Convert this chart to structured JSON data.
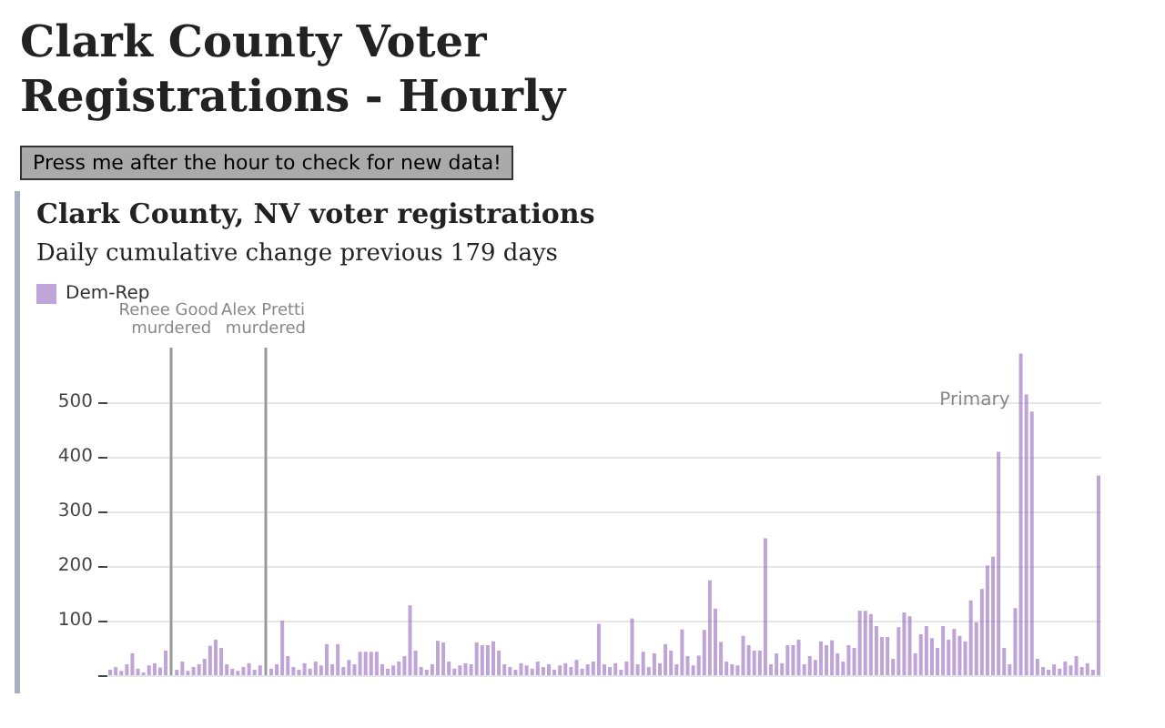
{
  "chart_data": {
    "type": "bar",
    "title": "Clark County, NV voter registrations",
    "subtitle": "Daily cumulative change previous 179 days",
    "annotations": [
      "Clark County Voter Registrations - Hourly",
      "Press me after the hour to check for new data!",
      "Renee Good murdered",
      "Alex Pretti murdered",
      "Primary"
    ],
    "categories": [
      null,
      null,
      null,
      null,
      null,
      null,
      null,
      null,
      null,
      null,
      null,
      null,
      null,
      null,
      null,
      null,
      null,
      null,
      null,
      null,
      null,
      null,
      null,
      null,
      null,
      null,
      null,
      null,
      null,
      null,
      null,
      null,
      null,
      null,
      null,
      null,
      null,
      null,
      null,
      null,
      null,
      null,
      null,
      null,
      null,
      null,
      null,
      null,
      null,
      null,
      null,
      null,
      null,
      null,
      null,
      null,
      null,
      null,
      null,
      null,
      null,
      null,
      null,
      null,
      null,
      null,
      null,
      null,
      null,
      null,
      null,
      null,
      null,
      null,
      null,
      null,
      null,
      null,
      null,
      null,
      null,
      null,
      null,
      null,
      null,
      null,
      null,
      null,
      null,
      null,
      null,
      null,
      null,
      null,
      null,
      null,
      null,
      null,
      null,
      null,
      null,
      null,
      null,
      null,
      null,
      null,
      null,
      null,
      null,
      null,
      null,
      null,
      null,
      null,
      null,
      null,
      null,
      null,
      null,
      null,
      null,
      null,
      null,
      null,
      null,
      null,
      null,
      null,
      null,
      null,
      null,
      null,
      null,
      null,
      null,
      null,
      null,
      null,
      null,
      null,
      null,
      null,
      null,
      null,
      null,
      null,
      null,
      null,
      null,
      null,
      null,
      null,
      null,
      null,
      null,
      null,
      null,
      null,
      null,
      null,
      null,
      null,
      null,
      null,
      null,
      null,
      null,
      null,
      null,
      null,
      null,
      null,
      null,
      null,
      null,
      null,
      null,
      null,
      null
    ],
    "series": [
      {
        "name": "Dem-Rep",
        "color": "#9467bd",
        "values": [
          10,
          15,
          8,
          20,
          40,
          12,
          5,
          18,
          22,
          14,
          45,
          null,
          10,
          25,
          8,
          15,
          20,
          30,
          54,
          65,
          50,
          20,
          12,
          8,
          15,
          22,
          10,
          18,
          null,
          12,
          20,
          100,
          35,
          15,
          10,
          22,
          12,
          25,
          18,
          57,
          20,
          57,
          15,
          28,
          20,
          43,
          43,
          43,
          43,
          20,
          12,
          18,
          25,
          35,
          128,
          45,
          15,
          10,
          20,
          63,
          60,
          25,
          12,
          18,
          22,
          20,
          60,
          55,
          55,
          62,
          45,
          20,
          15,
          10,
          22,
          18,
          12,
          25,
          15,
          20,
          10,
          18,
          22,
          15,
          28,
          12,
          20,
          25,
          94,
          20,
          15,
          22,
          10,
          25,
          104,
          20,
          43,
          15,
          40,
          22,
          57,
          45,
          20,
          84,
          35,
          18,
          36,
          83,
          174,
          122,
          61,
          25,
          20,
          18,
          72,
          55,
          45,
          45,
          251,
          20,
          40,
          22,
          55,
          55,
          65,
          20,
          35,
          28,
          62,
          55,
          64,
          40,
          25,
          55,
          50,
          118,
          118,
          112,
          90,
          70,
          70,
          30,
          88,
          115,
          108,
          40,
          75,
          90,
          68,
          50,
          90,
          65,
          85,
          72,
          62,
          137,
          97,
          158,
          201,
          217,
          409,
          50,
          20,
          123,
          589,
          514,
          483,
          30,
          15,
          10,
          20,
          12,
          25,
          18,
          35,
          15,
          22,
          10,
          366
        ]
      }
    ],
    "ylim": [
      0,
      600
    ],
    "yticks": [
      {
        "value": 0,
        "label": null
      },
      100,
      200,
      300,
      400,
      500
    ],
    "grid": "y",
    "legend": "top left",
    "tick_labels": "y"
  }
}
